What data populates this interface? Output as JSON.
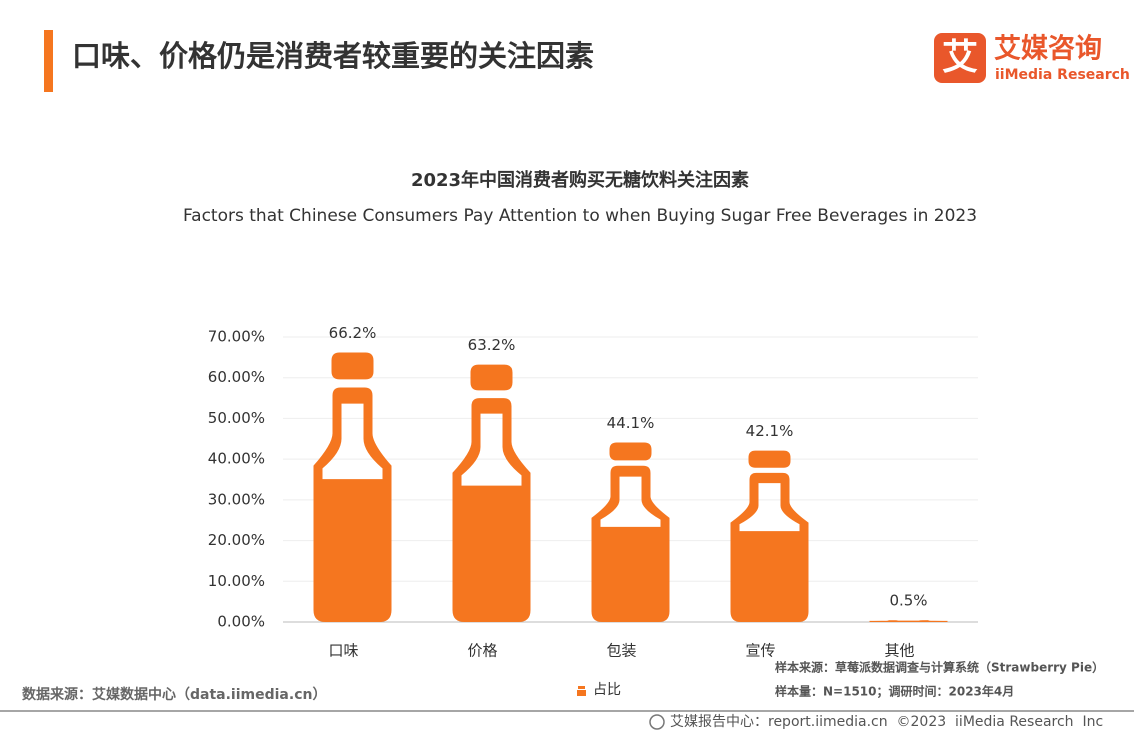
{
  "header": {
    "title": "口味、价格仍是消费者较重要的关注因素",
    "logo_mark": "艾",
    "logo_name": "艾媒咨询",
    "logo_sub": "iiMedia Research"
  },
  "chart_data": {
    "type": "bar",
    "title": "2023年中国消费者购买无糖饮料关注因素",
    "subtitle": "Factors that Chinese Consumers Pay Attention to when Buying Sugar Free Beverages in 2023",
    "categories": [
      "口味",
      "价格",
      "包装",
      "宣传",
      "其他"
    ],
    "series": [
      {
        "name": "占比",
        "color": "#f5761f",
        "values": [
          66.2,
          63.2,
          44.1,
          42.1,
          0.5
        ],
        "value_labels": [
          "66.2%",
          "63.2%",
          "44.1%",
          "42.1%",
          "0.5%"
        ]
      }
    ],
    "ylim": [
      0,
      70
    ],
    "yticks": [
      {
        "value": 0,
        "label": "0.00%"
      },
      {
        "value": 10,
        "label": "10.00%"
      },
      {
        "value": 20,
        "label": "20.00%"
      },
      {
        "value": 30,
        "label": "30.00%"
      },
      {
        "value": 40,
        "label": "40.00%"
      },
      {
        "value": 50,
        "label": "50.00%"
      },
      {
        "value": 60,
        "label": "60.00%"
      },
      {
        "value": 70,
        "label": "70.00%"
      }
    ],
    "grid": true
  },
  "footer": {
    "source": "数据来源：艾媒数据中心（data.iimedia.cn）",
    "sample_source": "样本来源：草莓派数据调查与计算系统（Strawberry Pie）",
    "sample_info": "样本量：N=1510；调研时间：2023年4月",
    "copyright": "艾媒报告中心：report.iimedia.cn  ©2023  iiMedia Research  Inc"
  }
}
